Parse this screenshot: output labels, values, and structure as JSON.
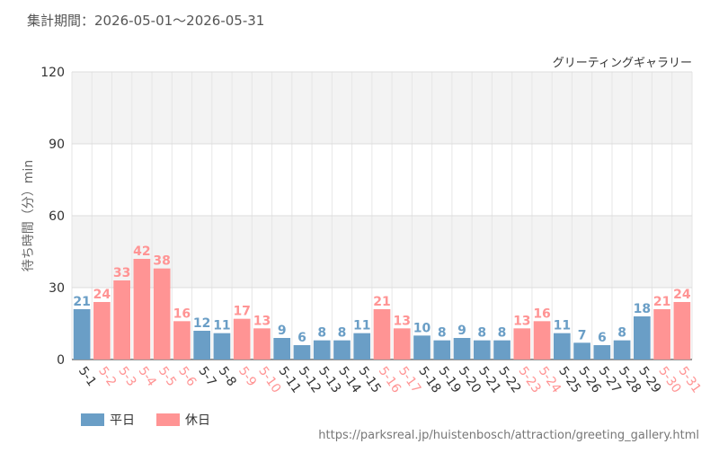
{
  "chart_data": {
    "type": "bar",
    "title": "集計期間：2026-05-01～2026-05-31",
    "subtitle": "グリーティングギャラリー",
    "y_label": "待ち時間（分）min",
    "source": "https://parksreal.jp/huistenbosch/attraction/greeting_gallery.html",
    "categories": [
      "5-1",
      "5-2",
      "5-3",
      "5-4",
      "5-5",
      "5-6",
      "5-7",
      "5-8",
      "5-9",
      "5-10",
      "5-11",
      "5-12",
      "5-13",
      "5-14",
      "5-15",
      "5-16",
      "5-17",
      "5-18",
      "5-19",
      "5-20",
      "5-21",
      "5-22",
      "5-23",
      "5-24",
      "5-25",
      "5-26",
      "5-27",
      "5-28",
      "5-29",
      "5-30",
      "5-31"
    ],
    "series": [
      {
        "name": "平日",
        "color": "#6a9ec6",
        "values": [
          21,
          null,
          null,
          null,
          null,
          null,
          12,
          11,
          null,
          null,
          9,
          6,
          8,
          8,
          11,
          null,
          null,
          10,
          8,
          9,
          8,
          8,
          null,
          null,
          11,
          7,
          6,
          8,
          18,
          null,
          null
        ]
      },
      {
        "name": "休日",
        "color": "#ff9494",
        "values": [
          null,
          24,
          33,
          42,
          38,
          16,
          null,
          null,
          17,
          13,
          null,
          null,
          null,
          null,
          null,
          21,
          13,
          null,
          null,
          null,
          null,
          null,
          13,
          16,
          null,
          null,
          null,
          null,
          null,
          21,
          24
        ]
      }
    ],
    "ylim": [
      0,
      120
    ],
    "yticks": [
      0,
      30,
      60,
      90,
      120
    ],
    "grid": true,
    "legend": "bottom-left"
  }
}
